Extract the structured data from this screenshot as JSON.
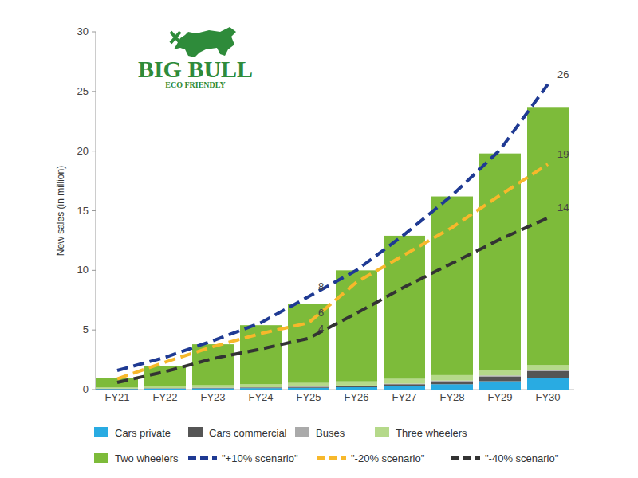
{
  "chart_data": {
    "type": "bar",
    "stacked": true,
    "grid": false,
    "annotations": [
      "BIG BULL",
      "ECO FRIENDLY"
    ],
    "y_label": "New sales (in million)",
    "categories": [
      "FY21",
      "FY22",
      "FY23",
      "FY24",
      "FY25",
      "FY26",
      "FY27",
      "FY28",
      "FY29",
      "FY30"
    ],
    "ylim": [
      0,
      30
    ],
    "yticks": [
      0,
      5,
      10,
      15,
      20,
      25,
      30
    ],
    "legend": "bottom",
    "series": [
      {
        "name": "Cars private",
        "type": "bar",
        "color": "#29abe2",
        "values": [
          0.05,
          0.08,
          0.1,
          0.12,
          0.15,
          0.2,
          0.3,
          0.45,
          0.7,
          1.0
        ]
      },
      {
        "name": "Cars commercial",
        "type": "bar",
        "color": "#555555",
        "values": [
          0.02,
          0.03,
          0.05,
          0.06,
          0.08,
          0.1,
          0.15,
          0.25,
          0.4,
          0.55
        ]
      },
      {
        "name": "Buses",
        "type": "bar",
        "color": "#aaaaaa",
        "values": [
          0.01,
          0.01,
          0.02,
          0.02,
          0.03,
          0.04,
          0.05,
          0.06,
          0.08,
          0.1
        ]
      },
      {
        "name": "Three wheelers",
        "type": "bar",
        "color": "#b5d98a",
        "values": [
          0.1,
          0.15,
          0.2,
          0.25,
          0.3,
          0.35,
          0.4,
          0.45,
          0.45,
          0.4
        ]
      },
      {
        "name": "Two wheelers",
        "type": "bar",
        "color": "#7dbb3a",
        "values": [
          0.82,
          1.73,
          3.43,
          4.95,
          6.64,
          9.31,
          12.0,
          14.99,
          18.17,
          21.65
        ]
      },
      {
        "name": "\"+10% scenario\"",
        "type": "line",
        "line_style": "dashed",
        "color": "#1f3a93",
        "values": [
          1.6,
          2.7,
          4.1,
          5.6,
          7.8,
          10.0,
          13.0,
          16.3,
          20.1,
          25.6
        ],
        "value_labels": [
          null,
          null,
          null,
          null,
          "8",
          null,
          null,
          null,
          null,
          "26"
        ]
      },
      {
        "name": "\"-20% scenario\"",
        "type": "line",
        "line_style": "dashed",
        "color": "#f7b82b",
        "values": [
          0.9,
          2.3,
          3.6,
          4.7,
          5.6,
          9.0,
          11.3,
          13.6,
          16.3,
          18.9
        ],
        "value_labels": [
          null,
          null,
          null,
          null,
          "6",
          null,
          null,
          null,
          null,
          "19"
        ]
      },
      {
        "name": "\"-40% scenario\"",
        "type": "line",
        "line_style": "dashed",
        "color": "#333333",
        "values": [
          0.6,
          1.5,
          2.6,
          3.4,
          4.3,
          6.4,
          8.6,
          10.6,
          12.6,
          14.4
        ],
        "value_labels": [
          null,
          null,
          null,
          null,
          "4",
          null,
          null,
          null,
          null,
          "14"
        ]
      }
    ]
  }
}
